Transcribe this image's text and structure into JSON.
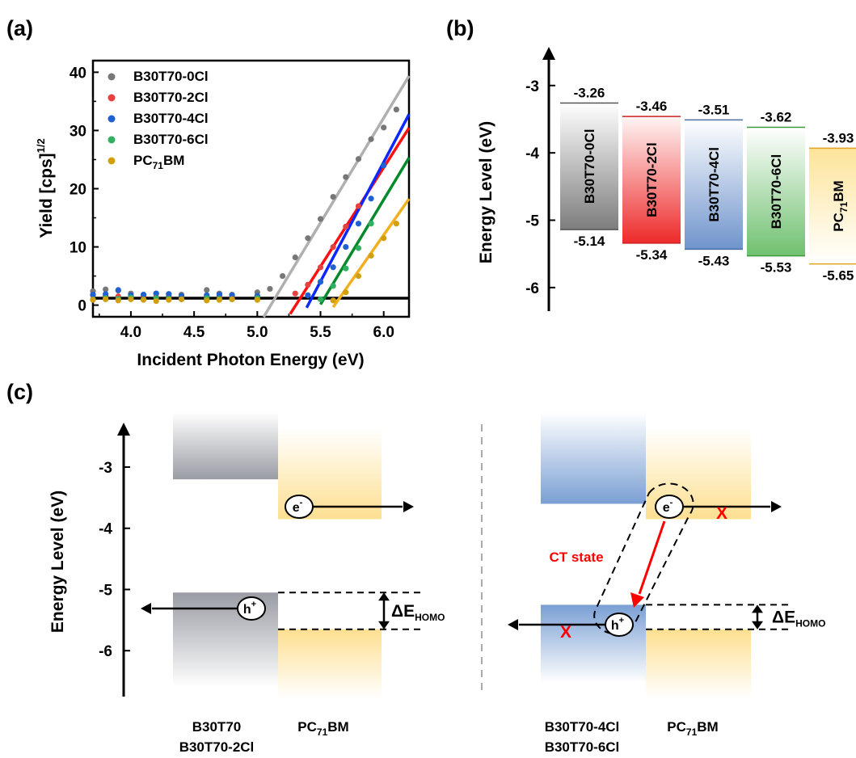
{
  "panel_labels": {
    "a": "(a)",
    "b": "(b)",
    "c": "(c)"
  },
  "chart_data": [
    {
      "type": "scatter",
      "xlabel": "Incident Photon Energy (eV)",
      "ylabel_main": "Yield [cps]",
      "ylabel_sup": "1/2",
      "xlim": [
        3.7,
        6.2
      ],
      "ylim": [
        -2,
        42
      ],
      "xticks": [
        4.0,
        4.5,
        5.0,
        5.5,
        6.0
      ],
      "xtick_labels": [
        "4.0",
        "4.5",
        "5.0",
        "5.5",
        "6.0"
      ],
      "yticks": [
        0,
        10,
        20,
        30,
        40
      ],
      "ytick_labels": [
        "0",
        "10",
        "20",
        "30",
        "40"
      ],
      "legend_position": "top-left",
      "baseline": 1.2,
      "series": [
        {
          "name": "B30T70-0Cl",
          "color": "#777777",
          "line_color": "#b0b0b0",
          "onset": 5.14,
          "slope": 36.0,
          "line_x": [
            5.05,
            6.2
          ],
          "flat_y": [
            2.4,
            2.7,
            2.5,
            2.0,
            1.8,
            2.0,
            1.9,
            1.8,
            2.6,
            2.0,
            1.8,
            2.2
          ],
          "rise_x": [
            5.1,
            5.2,
            5.3,
            5.4,
            5.5,
            5.6,
            5.7,
            5.8,
            5.9,
            6.0,
            6.1
          ],
          "rise_y": [
            2.8,
            5.0,
            8.2,
            11.5,
            14.8,
            18.6,
            22.0,
            25.1,
            28.5,
            30.5,
            33.6
          ]
        },
        {
          "name": "B30T70-2Cl",
          "color": "#e84040",
          "line_color": "#ff1010",
          "onset": 5.34,
          "slope": 34.0,
          "line_x": [
            5.26,
            6.2
          ],
          "flat_y": [
            1.7,
            1.6,
            1.5,
            1.3,
            1.6,
            1.4,
            1.5,
            1.3,
            1.6,
            1.5,
            1.4,
            1.5
          ],
          "rise_x": [
            5.3,
            5.4,
            5.5,
            5.6,
            5.7,
            5.8
          ],
          "rise_y": [
            2.0,
            3.5,
            6.5,
            10.0,
            13.5,
            17.0
          ]
        },
        {
          "name": "B30T70-4Cl",
          "color": "#2060d0",
          "line_color": "#0a28ff",
          "onset": 5.43,
          "slope": 41.0,
          "line_x": [
            5.39,
            6.2
          ],
          "flat_y": [
            1.8,
            1.9,
            2.6,
            1.7,
            1.8,
            2.0,
            1.9,
            1.6,
            1.7,
            1.8,
            1.7,
            1.6
          ],
          "rise_x": [
            5.4,
            5.5,
            5.6,
            5.7,
            5.8,
            5.9,
            6.0
          ],
          "rise_y": [
            1.7,
            4.0,
            6.5,
            10.0,
            14.0,
            18.3,
            24.0
          ]
        },
        {
          "name": "B30T70-6Cl",
          "color": "#30b060",
          "line_color": "#058a2a",
          "onset": 5.53,
          "slope": 36.0,
          "line_x": [
            5.5,
            6.2
          ],
          "flat_y": [
            1.0,
            1.2,
            1.1,
            1.3,
            1.0,
            1.2,
            1.1,
            1.0,
            1.2,
            1.1,
            1.0,
            1.2
          ],
          "rise_x": [
            5.5,
            5.6,
            5.7,
            5.8,
            5.9
          ],
          "rise_y": [
            1.0,
            3.3,
            6.3,
            9.8,
            14.0
          ]
        },
        {
          "name": "PC71BM",
          "name_main": "PC",
          "name_sub": "71",
          "name_tail": "BM",
          "color": "#d0a010",
          "line_color": "#f0b020",
          "onset": 5.65,
          "slope": 31.0,
          "line_x": [
            5.6,
            6.2
          ],
          "flat_y": [
            0.9,
            1.0,
            0.8,
            1.0,
            0.9,
            0.7,
            0.9,
            1.0,
            0.8,
            0.9,
            1.0,
            0.9
          ],
          "rise_x": [
            5.6,
            5.7,
            5.8,
            5.9,
            6.0,
            6.1
          ],
          "rise_y": [
            0.8,
            2.2,
            5.0,
            8.5,
            11.5,
            14.0
          ]
        }
      ],
      "flat_x": [
        3.7,
        3.8,
        3.9,
        4.0,
        4.1,
        4.2,
        4.3,
        4.4,
        4.6,
        4.7,
        4.8,
        5.0
      ]
    },
    {
      "type": "bar",
      "ylabel": "Energy Level (eV)",
      "ylim": [
        -6.35,
        -2.45
      ],
      "yticks": [
        -3,
        -4,
        -5,
        -6
      ],
      "ytick_labels": [
        "-3",
        "-4",
        "-5",
        "-6"
      ],
      "bars": [
        {
          "name": "B30T70-0Cl",
          "lumo": -3.26,
          "homo": -5.14,
          "lumo_label": "-3.26",
          "homo_label": "-5.14",
          "color_top": "#ffffff",
          "color_bottom": "#7d7d7d",
          "edge": "#555555"
        },
        {
          "name": "B30T70-2Cl",
          "lumo": -3.46,
          "homo": -5.34,
          "lumo_label": "-3.46",
          "homo_label": "-5.34",
          "color_top": "#fff5f5",
          "color_bottom": "#ee2a2a",
          "edge": "#cc2222"
        },
        {
          "name": "B30T70-4Cl",
          "lumo": -3.51,
          "homo": -5.43,
          "lumo_label": "-3.51",
          "homo_label": "-5.43",
          "color_top": "#ffffff",
          "color_bottom": "#6f94cc",
          "edge": "#4a6fa8"
        },
        {
          "name": "B30T70-6Cl",
          "lumo": -3.62,
          "homo": -5.53,
          "lumo_label": "-3.62",
          "homo_label": "-5.53",
          "color_top": "#ffffff",
          "color_bottom": "#6fc06f",
          "edge": "#3c9a3c"
        },
        {
          "name": "PC71BM",
          "name_main": "PC",
          "name_sub": "71",
          "name_tail": "BM",
          "lumo": -3.93,
          "homo": -5.65,
          "lumo_label": "-3.93",
          "homo_label": "-5.65",
          "color_top": "#fde49a",
          "color_bottom": "#ffffff",
          "edge": "#e0a020"
        }
      ]
    },
    {
      "type": "diagram",
      "ylabel": "Energy Level (eV)",
      "ylim": [
        -6.75,
        -2.3
      ],
      "yticks": [
        -3,
        -4,
        -5,
        -6
      ],
      "ytick_labels": [
        "-3",
        "-4",
        "-5",
        "-6"
      ],
      "left": {
        "donor_lumo": -3.2,
        "donor_homo": -5.05,
        "acceptor_lumo": -3.85,
        "acceptor_homo": -5.65,
        "electron": "e",
        "electron_sup": "-",
        "hole": "h",
        "hole_sup": "+",
        "delta_main": "ΔE",
        "delta_sub": "HOMO",
        "label_donor_1": "B30T70",
        "label_donor_2": "B30T70-2Cl",
        "label_acc_main": "PC",
        "label_acc_sub": "71",
        "label_acc_tail": "BM"
      },
      "right": {
        "donor_lumo": -3.6,
        "donor_homo": -5.25,
        "acceptor_lumo": -3.85,
        "acceptor_homo": -5.65,
        "electron": "e",
        "electron_sup": "-",
        "hole": "h",
        "hole_sup": "+",
        "ct_label": "CT state",
        "blocked_mark": "X",
        "delta_main": "ΔE",
        "delta_sub": "HOMO",
        "label_donor_1": "B30T70-4Cl",
        "label_donor_2": "B30T70-6Cl",
        "label_acc_main": "PC",
        "label_acc_sub": "71",
        "label_acc_tail": "BM"
      }
    }
  ]
}
